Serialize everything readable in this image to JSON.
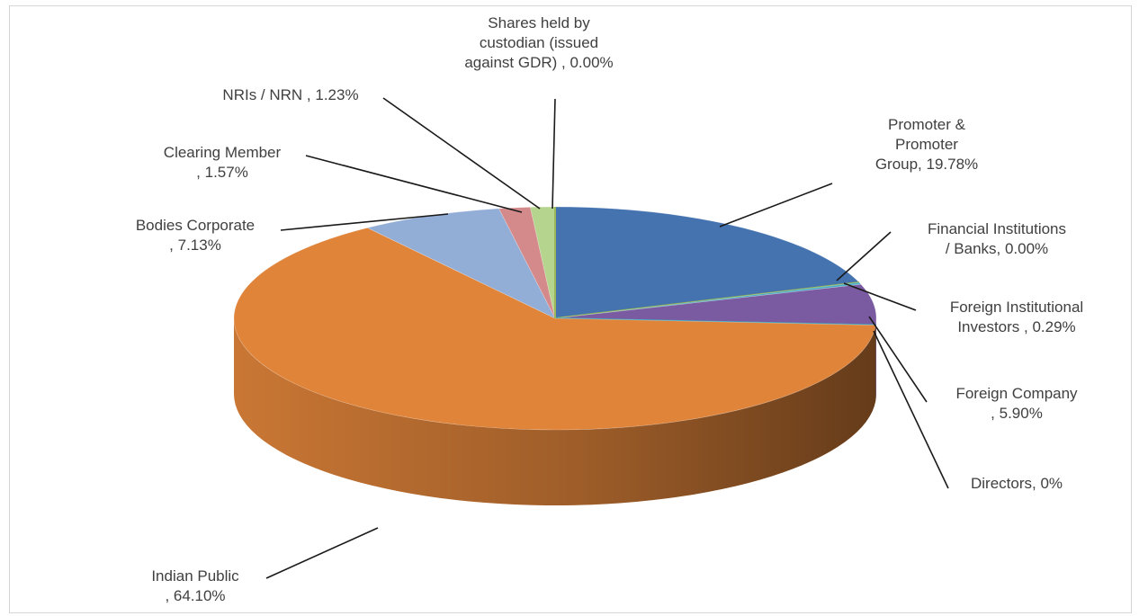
{
  "chart_data": {
    "type": "pie",
    "three_d": true,
    "title": "",
    "legend": "none",
    "slices": [
      {
        "label": "Promoter & Promoter Group",
        "value": 19.78,
        "display": "19.78%",
        "color": "#4473b0",
        "label_lines": [
          "Promoter &",
          "Promoter",
          "Group, 19.78%"
        ]
      },
      {
        "label": "Financial Institutions / Banks",
        "value": 0.0,
        "display": "0.00%",
        "color": "#8fb04a",
        "label_lines": [
          "Financial Institutions",
          "/ Banks, 0.00%"
        ]
      },
      {
        "label": "Foreign Institutional Investors",
        "value": 0.29,
        "display": "0.29%",
        "color": "#4bacc6",
        "label_lines": [
          "Foreign Institutional",
          "Investors , 0.29%"
        ]
      },
      {
        "label": "Foreign Company",
        "value": 5.9,
        "display": "5.90%",
        "color": "#7a5aa0",
        "label_lines": [
          "Foreign Company",
          ", 5.90%"
        ]
      },
      {
        "label": "Directors",
        "value": 0,
        "display": "0%",
        "color": "#3fa6c0",
        "label_lines": [
          "Directors, 0%"
        ]
      },
      {
        "label": "Indian Public",
        "value": 64.1,
        "display": "64.10%",
        "color": "#e0843a",
        "label_lines": [
          "Indian Public",
          ", 64.10%"
        ]
      },
      {
        "label": "Bodies Corporate",
        "value": 7.13,
        "display": "7.13%",
        "color": "#93aed6",
        "label_lines": [
          "Bodies Corporate",
          ", 7.13%"
        ]
      },
      {
        "label": "Clearing Member",
        "value": 1.57,
        "display": "1.57%",
        "color": "#d48a8a",
        "label_lines": [
          "Clearing Member",
          ", 1.57%"
        ]
      },
      {
        "label": "NRIs / NRN",
        "value": 1.23,
        "display": "1.23%",
        "color": "#b5d48d",
        "label_lines": [
          "NRIs / NRN , 1.23%"
        ]
      },
      {
        "label": "Shares held by custodian (issued against GDR)",
        "value": 0.0,
        "display": "0.00%",
        "color": "#9ab85a",
        "label_lines": [
          "Shares held by",
          "custodian (issued",
          "against GDR) , 0.00%"
        ]
      }
    ]
  }
}
